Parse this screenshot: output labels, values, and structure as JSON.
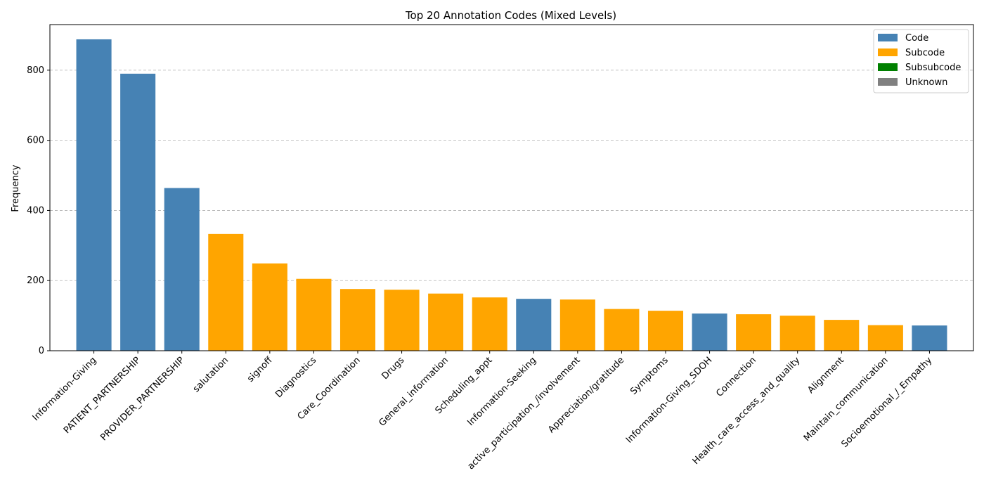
{
  "chart_data": {
    "type": "bar",
    "title": "Top 20 Annotation Codes (Mixed Levels)",
    "xlabel": "",
    "ylabel": "Frequency",
    "ylim": [
      0,
      930
    ],
    "yticks": [
      0,
      200,
      400,
      600,
      800
    ],
    "grid": "horizontal dashed",
    "legend_position": "top-right",
    "legend": [
      {
        "label": "Code",
        "color": "#4682B4"
      },
      {
        "label": "Subcode",
        "color": "#FFA500"
      },
      {
        "label": "Subsubcode",
        "color": "#008000"
      },
      {
        "label": "Unknown",
        "color": "#808080"
      }
    ],
    "categories": [
      "Information-Giving",
      "PATIENT_PARTNERSHIP",
      "PROVIDER_PARTNERSHIP",
      "salutation",
      "signoff",
      "Diagnostics",
      "Care_Coordination",
      "Drugs",
      "General_information",
      "Scheduling_appt",
      "Information-Seeking",
      "active_participation_/involvement",
      "Appreciation/gratitude",
      "Symptoms",
      "Information-Giving_SDOH",
      "Connection",
      "Health_care_access_and_quality",
      "Alignment",
      "Maintain_communication",
      "Socioemotional_/_Empathy"
    ],
    "values": [
      888,
      790,
      464,
      333,
      249,
      205,
      176,
      174,
      163,
      152,
      148,
      146,
      119,
      114,
      106,
      104,
      100,
      88,
      73,
      72
    ],
    "levels": [
      "Code",
      "Code",
      "Code",
      "Subcode",
      "Subcode",
      "Subcode",
      "Subcode",
      "Subcode",
      "Subcode",
      "Subcode",
      "Code",
      "Subcode",
      "Subcode",
      "Subcode",
      "Code",
      "Subcode",
      "Subcode",
      "Subcode",
      "Subcode",
      "Code"
    ]
  }
}
